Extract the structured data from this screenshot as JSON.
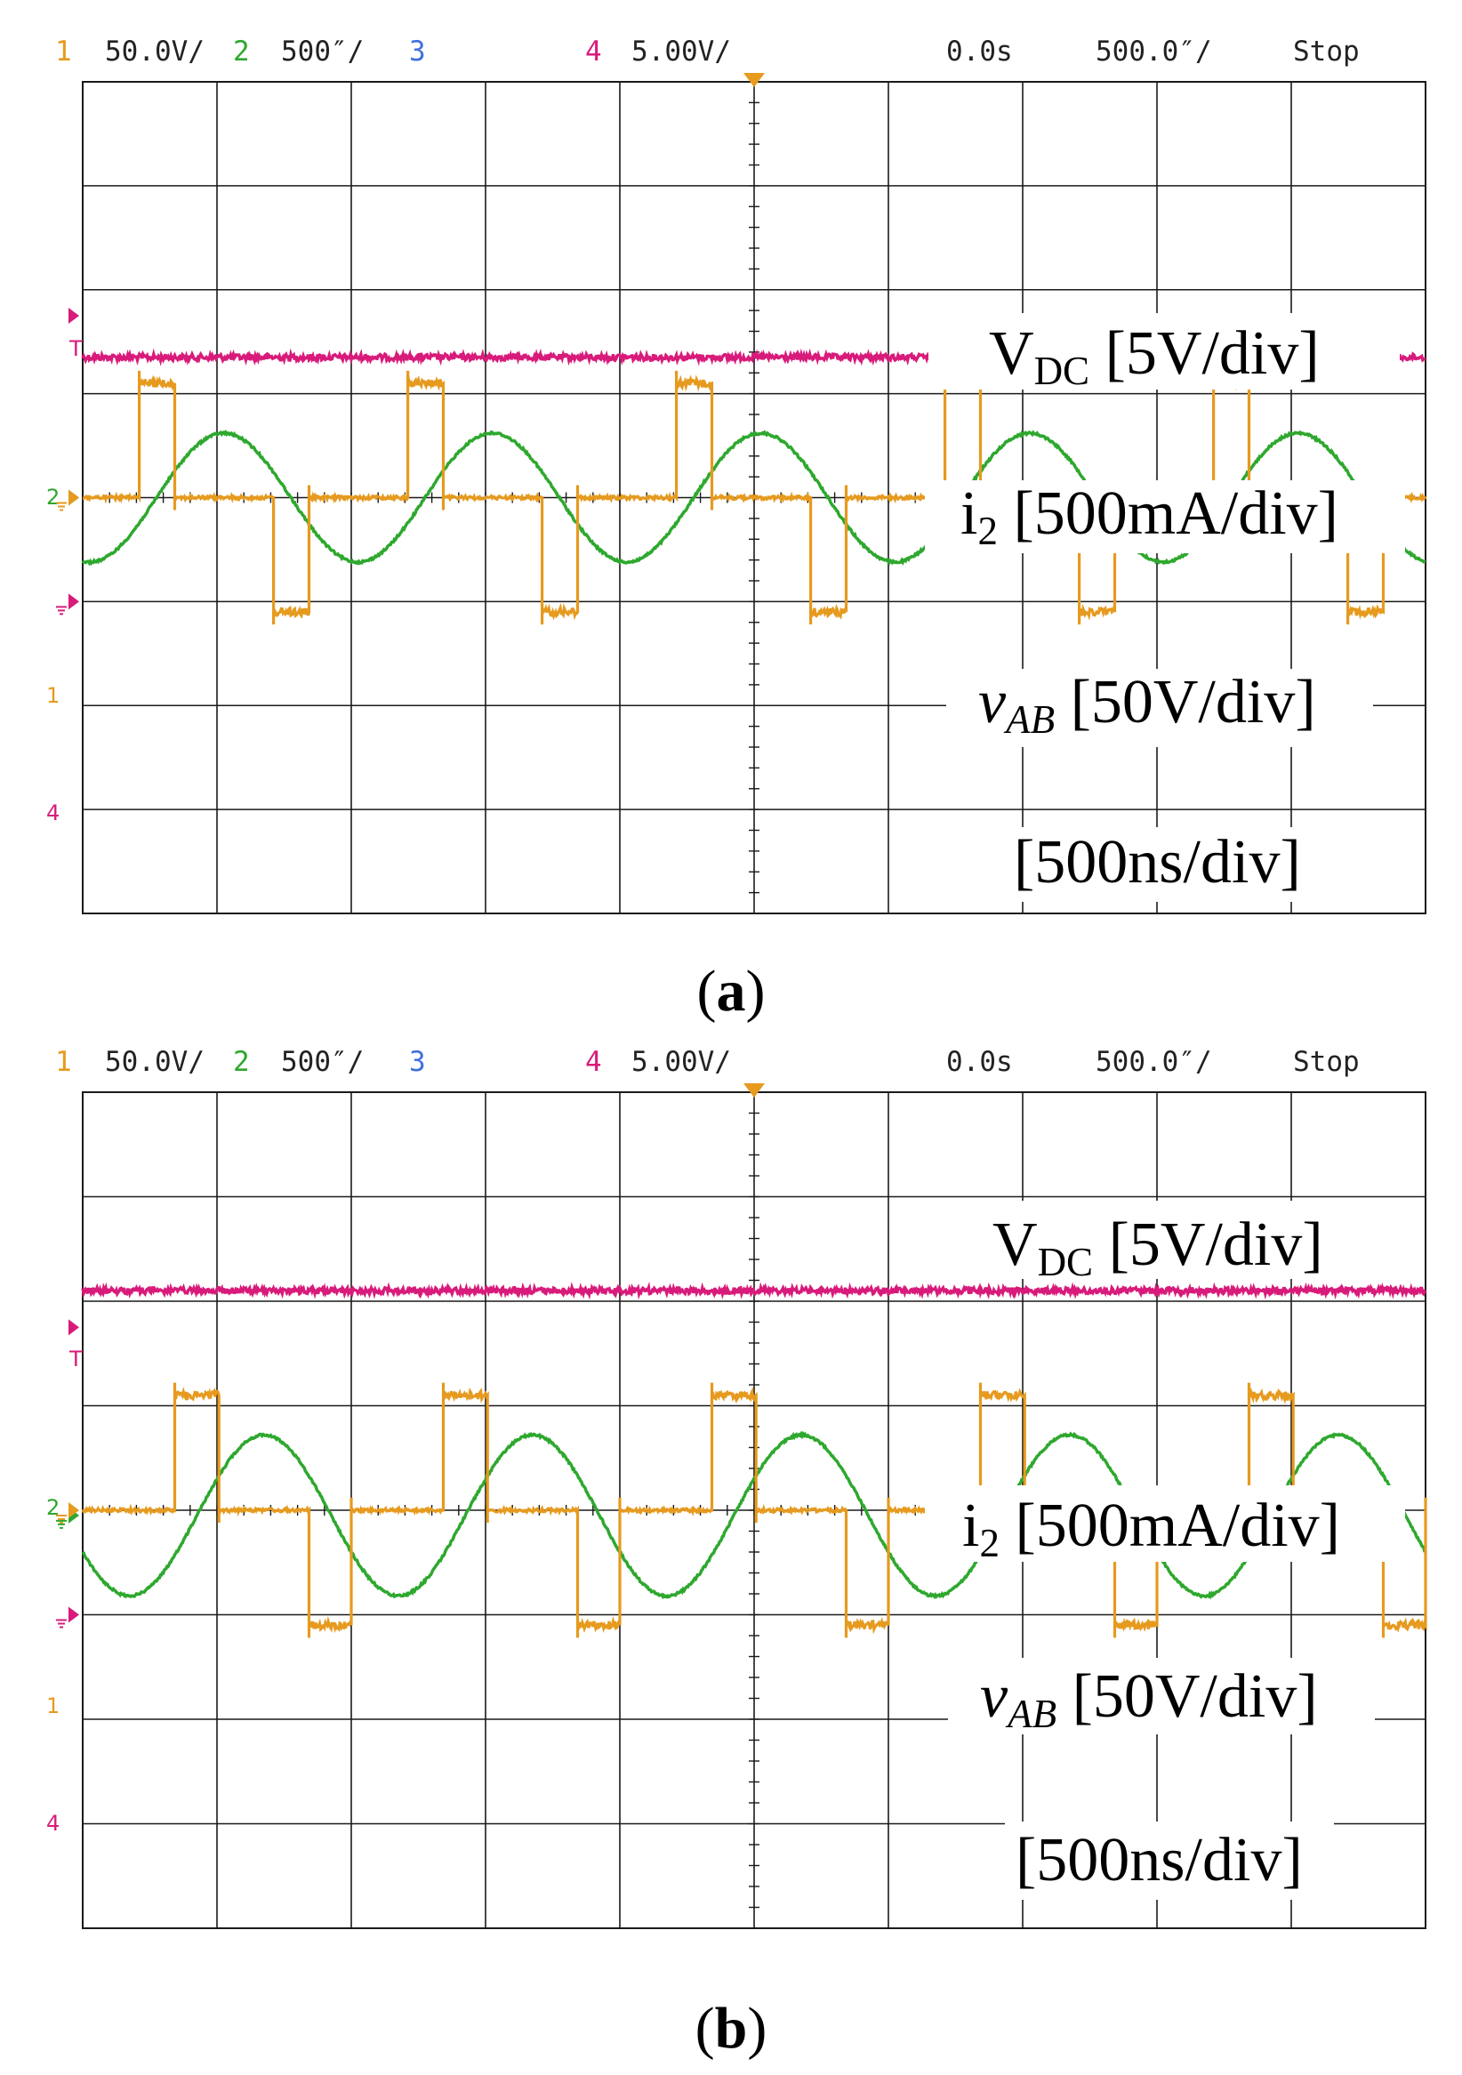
{
  "colors": {
    "ch1": "#e69a1e",
    "ch2": "#2ea82e",
    "ch3": "#3f6fe0",
    "ch4": "#d81b7b",
    "grid": "#1a1a1a",
    "background": "#ffffff"
  },
  "chart_data": [
    {
      "type": "line",
      "panel": "a",
      "caption_letter": "a",
      "header": {
        "ch1_num": "1",
        "ch1_scale": "50.0V/",
        "ch2_num": "2",
        "ch2_scale": "500″/",
        "ch3_num": "3",
        "ch4_num": "4",
        "ch4_scale": "5.00V/",
        "delay": "0.0s",
        "timebase": "500.0″/",
        "status": "Stop"
      },
      "markers": {
        "ch2": "2",
        "ch1": "1",
        "ch4": "4",
        "trigger": "T"
      },
      "labels": {
        "vdc_main": "V",
        "vdc_sub": "DC",
        "vdc_rest": " [5V/div]",
        "i2_main": "i",
        "i2_sub": "2",
        "i2_rest": " [500mA/div]",
        "vab_main": "v",
        "vab_sub": "AB",
        "vab_rest": " [50V/div]",
        "time": "[500ns/div]"
      },
      "x_divisions": 10,
      "y_divisions": 8,
      "x_range_div": [
        0,
        10
      ],
      "y_range_div": [
        -4,
        4
      ],
      "series": [
        {
          "name": "VDC",
          "channel": 4,
          "kind": "dc",
          "level_div": 1.35
        },
        {
          "name": "i2",
          "channel": 2,
          "kind": "sine",
          "amplitude_div": 0.62,
          "offset_div": 0.0,
          "period_div": 2.0,
          "peak_at_div": 1.05
        },
        {
          "name": "vAB",
          "channel": 1,
          "kind": "quasi-square",
          "high_div": 1.1,
          "low_div": -1.1,
          "zero_div": 0.0,
          "period_div": 2.0,
          "pos_start_div": 0.42,
          "pos_width_div": 0.26,
          "neg_start_div": 1.42,
          "neg_width_div": 0.26
        }
      ]
    },
    {
      "type": "line",
      "panel": "b",
      "caption_letter": "b",
      "header": {
        "ch1_num": "1",
        "ch1_scale": "50.0V/",
        "ch2_num": "2",
        "ch2_scale": "500″/",
        "ch3_num": "3",
        "ch4_num": "4",
        "ch4_scale": "5.00V/",
        "delay": "0.0s",
        "timebase": "500.0″/",
        "status": "Stop"
      },
      "markers": {
        "ch2": "2",
        "ch1": "1",
        "ch4": "4",
        "trigger": "T"
      },
      "labels": {
        "vdc_main": "V",
        "vdc_sub": "DC",
        "vdc_rest": " [5V/div]",
        "i2_main": "i",
        "i2_sub": "2",
        "i2_rest": " [500mA/div]",
        "vab_main": "v",
        "vab_sub": "AB",
        "vab_rest": " [50V/div]",
        "time": "[500ns/div]"
      },
      "x_divisions": 10,
      "y_divisions": 8,
      "x_range_div": [
        0,
        10
      ],
      "y_range_div": [
        -4,
        4
      ],
      "series": [
        {
          "name": "VDC",
          "channel": 4,
          "kind": "dc",
          "level_div": 2.1
        },
        {
          "name": "i2",
          "channel": 2,
          "kind": "sine",
          "amplitude_div": 0.77,
          "offset_div": -0.05,
          "period_div": 2.0,
          "peak_at_div": 1.35
        },
        {
          "name": "vAB",
          "channel": 1,
          "kind": "quasi-square",
          "high_div": 1.1,
          "low_div": -1.1,
          "zero_div": 0.0,
          "period_div": 2.0,
          "pos_start_div": 0.68,
          "pos_width_div": 0.33,
          "neg_start_div": 1.68,
          "neg_width_div": 0.33
        }
      ]
    }
  ]
}
